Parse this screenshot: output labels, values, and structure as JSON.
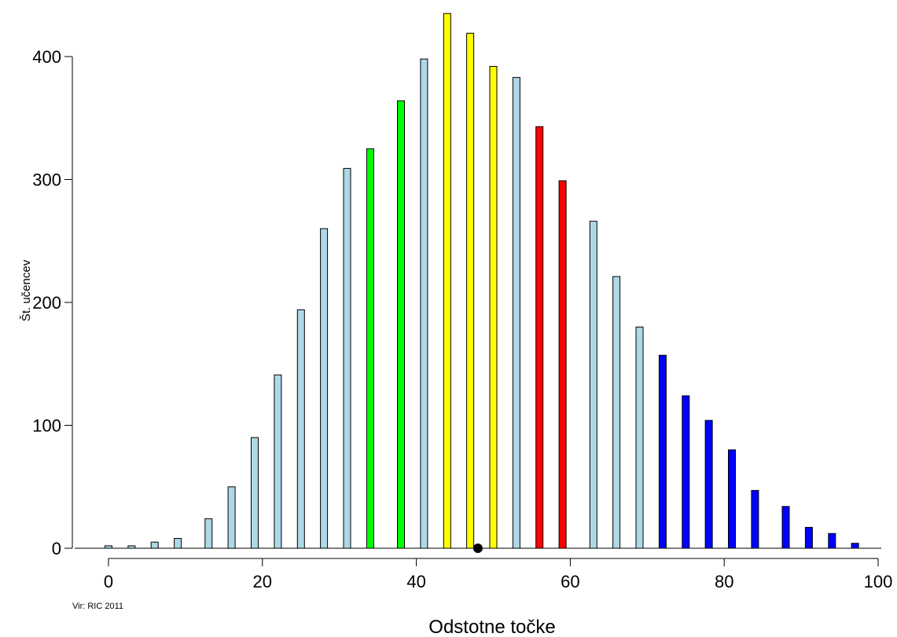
{
  "chart_data": {
    "type": "bar",
    "xlabel": "Odstotne točke",
    "ylabel": "Št. učencev",
    "source": "Vir: RIC 2011",
    "xlim": [
      0,
      100
    ],
    "ylim": [
      0,
      440
    ],
    "x_ticks": [
      0,
      20,
      40,
      60,
      80,
      100
    ],
    "y_ticks": [
      0,
      100,
      200,
      300,
      400
    ],
    "grid": false,
    "legend": "none",
    "colors": {
      "default": "#add8e6",
      "green": "#00ff00",
      "yellow": "#ffff00",
      "red": "#ff0000",
      "blue": "#0000ff",
      "marker": "#000000"
    },
    "bars": [
      {
        "x": 0,
        "value": 2,
        "color": "default"
      },
      {
        "x": 3,
        "value": 2,
        "color": "default"
      },
      {
        "x": 6,
        "value": 5,
        "color": "default"
      },
      {
        "x": 9,
        "value": 8,
        "color": "default"
      },
      {
        "x": 13,
        "value": 24,
        "color": "default"
      },
      {
        "x": 16,
        "value": 50,
        "color": "default"
      },
      {
        "x": 19,
        "value": 90,
        "color": "default"
      },
      {
        "x": 22,
        "value": 141,
        "color": "default"
      },
      {
        "x": 25,
        "value": 194,
        "color": "default"
      },
      {
        "x": 28,
        "value": 260,
        "color": "default"
      },
      {
        "x": 31,
        "value": 309,
        "color": "default"
      },
      {
        "x": 34,
        "value": 325,
        "color": "green"
      },
      {
        "x": 38,
        "value": 364,
        "color": "green"
      },
      {
        "x": 41,
        "value": 398,
        "color": "default"
      },
      {
        "x": 44,
        "value": 435,
        "color": "yellow"
      },
      {
        "x": 47,
        "value": 419,
        "color": "yellow"
      },
      {
        "x": 50,
        "value": 392,
        "color": "yellow"
      },
      {
        "x": 53,
        "value": 383,
        "color": "default"
      },
      {
        "x": 56,
        "value": 343,
        "color": "red"
      },
      {
        "x": 59,
        "value": 299,
        "color": "red"
      },
      {
        "x": 63,
        "value": 266,
        "color": "default"
      },
      {
        "x": 66,
        "value": 221,
        "color": "default"
      },
      {
        "x": 69,
        "value": 180,
        "color": "default"
      },
      {
        "x": 72,
        "value": 157,
        "color": "blue"
      },
      {
        "x": 75,
        "value": 124,
        "color": "blue"
      },
      {
        "x": 78,
        "value": 104,
        "color": "blue"
      },
      {
        "x": 81,
        "value": 80,
        "color": "blue"
      },
      {
        "x": 84,
        "value": 47,
        "color": "blue"
      },
      {
        "x": 88,
        "value": 34,
        "color": "blue"
      },
      {
        "x": 91,
        "value": 17,
        "color": "blue"
      },
      {
        "x": 94,
        "value": 12,
        "color": "blue"
      },
      {
        "x": 97,
        "value": 4,
        "color": "blue"
      }
    ],
    "mean_marker": {
      "x": 48,
      "y": 0
    }
  }
}
